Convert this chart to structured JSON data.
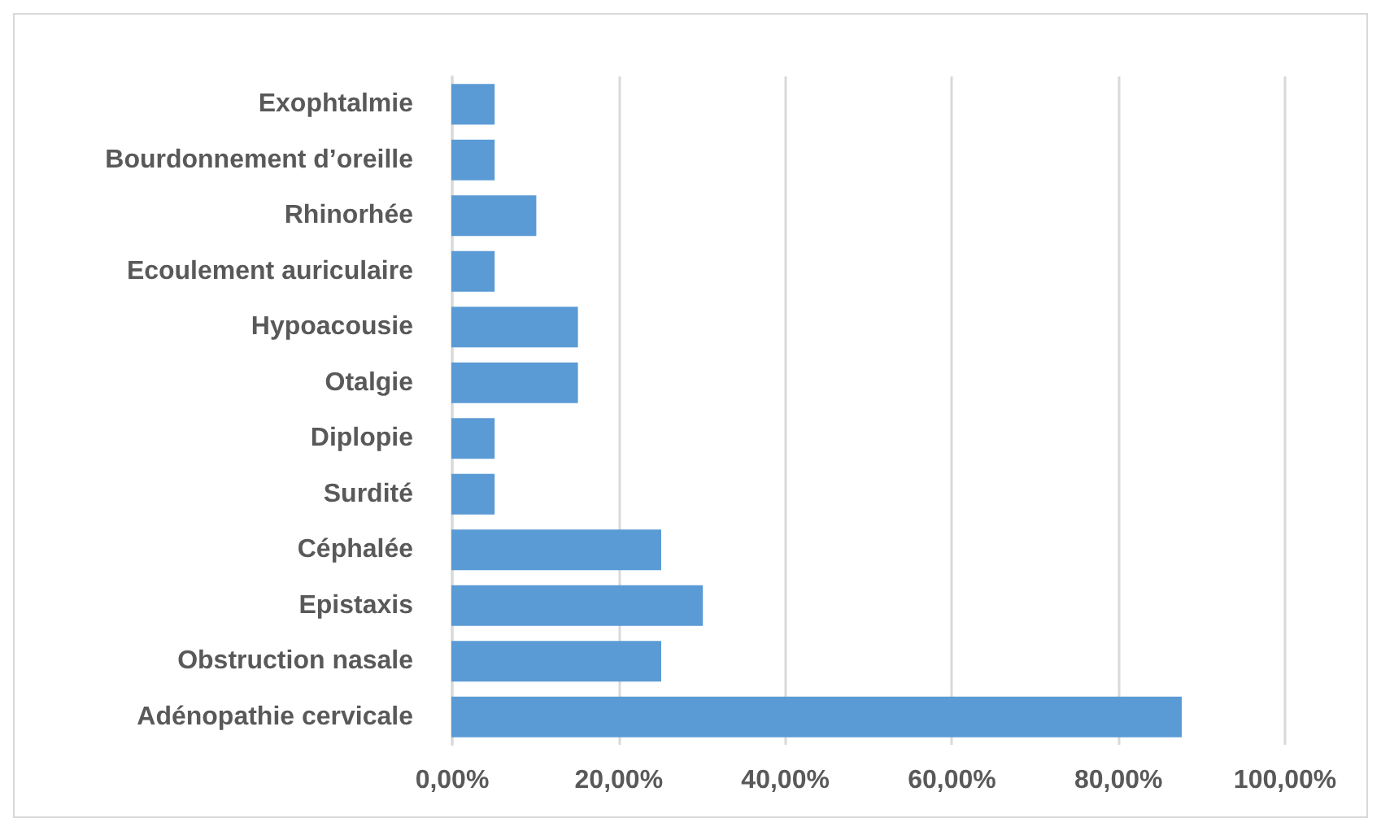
{
  "chart_data": {
    "type": "bar",
    "orientation": "horizontal",
    "categories": [
      "Exophtalmie",
      "Bourdonnement d’oreille",
      "Rhinorhée",
      "Ecoulement auriculaire",
      "Hypoacousie",
      "Otalgie",
      "Diplopie",
      "Surdité",
      "Céphalée",
      "Epistaxis",
      "Obstruction nasale",
      "Adénopathie cervicale"
    ],
    "values": [
      5,
      5,
      10,
      5,
      15,
      15,
      5,
      5,
      25,
      30,
      25,
      87.5
    ],
    "color": "#5b9bd5",
    "xlim": [
      0,
      100
    ],
    "xticks": [
      {
        "value": 0,
        "label": "0,00%"
      },
      {
        "value": 20,
        "label": "20,00%"
      },
      {
        "value": 40,
        "label": "40,00%"
      },
      {
        "value": 60,
        "label": "60,00%"
      },
      {
        "value": 80,
        "label": "80,00%"
      },
      {
        "value": 100,
        "label": "100,00%"
      }
    ],
    "grid": "x"
  }
}
